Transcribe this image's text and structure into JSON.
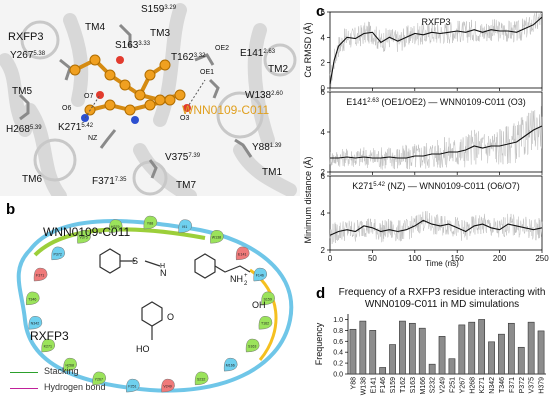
{
  "panel_a": {
    "label": "a",
    "protein": "RXFP3",
    "ligand": "WNN0109-C011",
    "helices": [
      "TM4",
      "TM3",
      "TM2",
      "TM5",
      "TM6",
      "TM7",
      "TM1"
    ],
    "residues": [
      {
        "name": "S159",
        "sup": "3.29"
      },
      {
        "name": "Y267",
        "sup": "5.38"
      },
      {
        "name": "S163",
        "sup": "3.33"
      },
      {
        "name": "T162",
        "sup": "3.32"
      },
      {
        "name": "E141",
        "sup": "2.63"
      },
      {
        "name": "W138",
        "sup": "2.60"
      },
      {
        "name": "H268",
        "sup": "5.39"
      },
      {
        "name": "K271",
        "sup": "5.42"
      },
      {
        "name": "Y88",
        "sup": "1.39"
      },
      {
        "name": "V375",
        "sup": "7.39"
      },
      {
        "name": "F371",
        "sup": "7.35"
      }
    ],
    "atoms": [
      "OE2",
      "OE1",
      "O3",
      "O6",
      "O7",
      "NZ"
    ]
  },
  "panel_b": {
    "label": "b",
    "ligand": "WNN0109-C011",
    "protein": "RXFP3",
    "legend": [
      {
        "label": "Stacking",
        "color": "#2ca02c"
      },
      {
        "label": "Hydrogen bond",
        "color": "#c0209a"
      }
    ],
    "atoms": {
      "nh": "NH",
      "plus": "+",
      "h2": "2",
      "oh": "OH",
      "ho": "HO",
      "o": "O",
      "s": "S",
      "h": "H",
      "n": "N"
    },
    "residue_bubbles": [
      "Y88",
      "I91",
      "W138",
      "E141",
      "F146",
      "S159",
      "T162",
      "S163",
      "M166",
      "S232",
      "V249",
      "F251",
      "Y267",
      "H268",
      "K271",
      "N342",
      "T346",
      "F371",
      "P372",
      "V375",
      "H379"
    ]
  },
  "panel_c": {
    "label": "c",
    "x_label": "Time (ns)",
    "x_ticks": [
      "0",
      "50",
      "100",
      "150",
      "200",
      "250"
    ],
    "y_label_shared": "Minimum distance (Å)"
  },
  "panel_d": {
    "label": "d",
    "title_line1": "Frequency of a RXFP3 residue interacting with",
    "title_line2": "WNN0109-C011 in MD simulations",
    "y_label": "Frequency"
  },
  "chart_data": [
    {
      "type": "line",
      "title": "RXFP3",
      "ylabel": "Cα RMSD (Å)",
      "xlabel": "",
      "xlim": [
        0,
        250
      ],
      "ylim": [
        0,
        6
      ],
      "y_ticks": [
        0,
        2,
        4,
        6
      ],
      "series": [
        {
          "name": "smoothed",
          "x": [
            0,
            5,
            10,
            20,
            30,
            40,
            50,
            60,
            70,
            80,
            90,
            100,
            110,
            120,
            130,
            140,
            150,
            160,
            170,
            180,
            190,
            200,
            210,
            220,
            230,
            240,
            250
          ],
          "y": [
            0.3,
            2.2,
            3.3,
            4.0,
            3.9,
            4.3,
            4.4,
            3.6,
            4.0,
            3.7,
            4.0,
            4.3,
            4.2,
            4.4,
            4.3,
            4.4,
            4.5,
            4.4,
            4.6,
            4.4,
            4.6,
            4.5,
            4.5,
            4.4,
            4.7,
            5.0,
            5.6
          ]
        }
      ]
    },
    {
      "type": "line",
      "title": "E141 (OE1/OE2) — WNN0109-C011 (O3)",
      "title_sup": "2.63",
      "ylabel": "",
      "xlim": [
        0,
        250
      ],
      "ylim": [
        2,
        6
      ],
      "y_ticks": [
        2,
        4,
        6
      ],
      "series": [
        {
          "name": "smoothed",
          "x": [
            0,
            10,
            20,
            30,
            40,
            50,
            60,
            70,
            80,
            90,
            100,
            110,
            120,
            130,
            140,
            150,
            160,
            170,
            180,
            190,
            200,
            210,
            220,
            230,
            240,
            250
          ],
          "y": [
            2.7,
            2.7,
            2.75,
            2.7,
            2.75,
            2.7,
            2.7,
            2.75,
            2.7,
            2.7,
            2.8,
            2.8,
            2.9,
            2.9,
            3.0,
            3.0,
            3.1,
            3.3,
            3.2,
            3.3,
            3.3,
            3.4,
            3.5,
            3.8,
            4.1,
            4.3
          ]
        }
      ]
    },
    {
      "type": "line",
      "title": "K271 (NZ) — WNN0109-C011 (O6/O7)",
      "title_sup": "5.42",
      "ylabel": "",
      "xlim": [
        0,
        250
      ],
      "ylim": [
        2,
        6
      ],
      "y_ticks": [
        2,
        4,
        6
      ],
      "series": [
        {
          "name": "smoothed",
          "x": [
            0,
            10,
            20,
            30,
            40,
            50,
            60,
            70,
            80,
            90,
            100,
            110,
            120,
            130,
            140,
            150,
            160,
            170,
            180,
            190,
            200,
            210,
            220,
            230,
            240,
            250
          ],
          "y": [
            2.8,
            3.0,
            3.1,
            3.0,
            3.3,
            3.2,
            3.0,
            3.1,
            3.0,
            3.1,
            3.3,
            3.6,
            3.4,
            3.3,
            3.4,
            3.2,
            3.0,
            3.3,
            3.4,
            3.2,
            3.1,
            3.4,
            3.3,
            3.2,
            3.1,
            3.2
          ]
        }
      ]
    },
    {
      "type": "bar",
      "title": "Frequency of a RXFP3 residue interacting with WNN0109-C011 in MD simulations",
      "ylabel": "Frequency",
      "xlabel": "",
      "ylim": [
        0,
        1.1
      ],
      "y_ticks": [
        0.0,
        0.2,
        0.4,
        0.6,
        0.8,
        1.0
      ],
      "categories": [
        "Y88",
        "W138",
        "E141",
        "F146",
        "S159",
        "T162",
        "S163",
        "M166",
        "S232",
        "V249",
        "F251",
        "Y267",
        "H268",
        "K271",
        "N342",
        "T346",
        "F371",
        "P372",
        "V375",
        "H379"
      ],
      "values": [
        0.82,
        0.97,
        0.8,
        0.12,
        0.54,
        0.97,
        0.93,
        0.84,
        0.18,
        0.69,
        0.28,
        0.9,
        0.95,
        1.0,
        0.59,
        0.73,
        0.93,
        0.49,
        0.95,
        0.79
      ]
    }
  ]
}
